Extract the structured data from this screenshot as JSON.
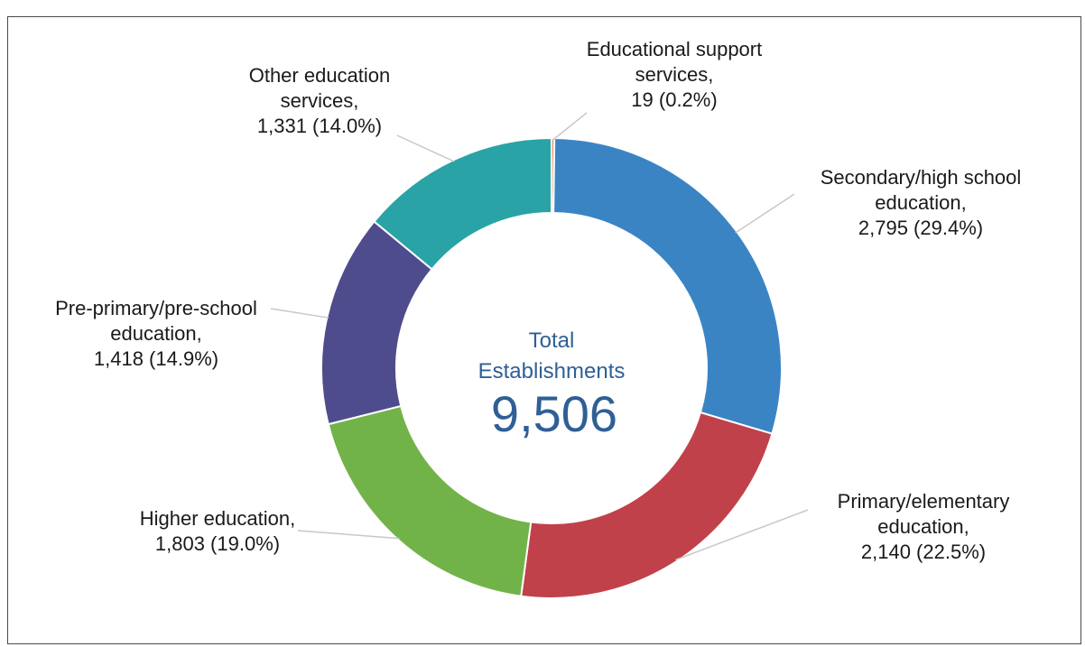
{
  "chart_data": {
    "type": "pie",
    "donut": true,
    "center_label": {
      "line1": "Total",
      "line2": "Establishments",
      "value": "9,506"
    },
    "slices": [
      {
        "name": "Educational support services",
        "value": 19,
        "percent": 0.2,
        "color": "#e08a4a",
        "label_lines": [
          "Educational support",
          "services,",
          "19 (0.2%)"
        ]
      },
      {
        "name": "Secondary/high school education",
        "value": 2795,
        "percent": 29.4,
        "color": "#3b84c4",
        "label_lines": [
          "Secondary/high school",
          "education,",
          "2,795 (29.4%)"
        ]
      },
      {
        "name": "Primary/elementary education",
        "value": 2140,
        "percent": 22.5,
        "color": "#c0414a",
        "label_lines": [
          "Primary/elementary",
          "education,",
          "2,140 (22.5%)"
        ]
      },
      {
        "name": "Higher education",
        "value": 1803,
        "percent": 19.0,
        "color": "#72b349",
        "label_lines": [
          "Higher education,",
          "1,803 (19.0%)"
        ]
      },
      {
        "name": "Pre-primary/pre-school education",
        "value": 1418,
        "percent": 14.9,
        "color": "#4e4c8c",
        "label_lines": [
          "Pre-primary/pre-school",
          "education,",
          "1,418 (14.9%)"
        ]
      },
      {
        "name": "Other education services",
        "value": 1331,
        "percent": 14.0,
        "color": "#2aa3a6",
        "label_lines": [
          "Other education",
          "services,",
          "1,331 (14.0%)"
        ]
      }
    ]
  }
}
